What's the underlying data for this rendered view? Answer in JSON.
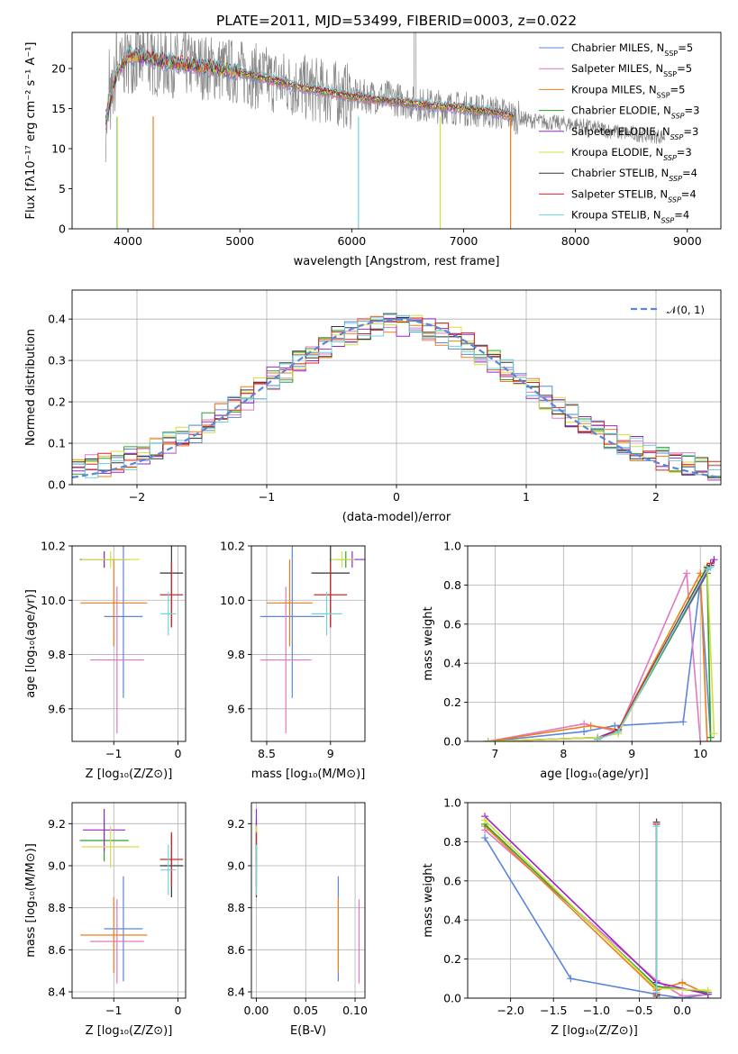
{
  "title": "PLATE=2011, MJD=53499, FIBERID=0003, z=0.022",
  "colors": {
    "Chabrier MILES": "#5b86d9",
    "Salpeter MILES": "#e377c2",
    "Kroupa MILES": "#ee7d1b",
    "Chabrier ELODIE": "#2ca02c",
    "Salpeter ELODIE": "#9925c9",
    "Kroupa ELODIE": "#d6df3e",
    "Chabrier STELIB": "#333333",
    "Salpeter STELIB": "#d62728",
    "Kroupa STELIB": "#6fd3dc"
  },
  "legend_spectrum": [
    {
      "name": "Chabrier MILES",
      "nssp": "5"
    },
    {
      "name": "Salpeter MILES",
      "nssp": "5"
    },
    {
      "name": "Kroupa MILES",
      "nssp": "5"
    },
    {
      "name": "Chabrier ELODIE",
      "nssp": "3"
    },
    {
      "name": "Salpeter ELODIE",
      "nssp": "3"
    },
    {
      "name": "Kroupa ELODIE",
      "nssp": "3"
    },
    {
      "name": "Chabrier STELIB",
      "nssp": "4"
    },
    {
      "name": "Salpeter STELIB",
      "nssp": "4"
    },
    {
      "name": "Kroupa STELIB",
      "nssp": "4"
    }
  ],
  "chart_data": [
    {
      "id": "spectrum",
      "type": "line",
      "xlabel": "wavelength [Angstrom, rest frame]",
      "ylabel": "Flux [fλ10⁻¹⁷ erg cm⁻² s⁻¹ A⁻¹]",
      "xlim": [
        3500,
        9300
      ],
      "ylim": [
        0,
        24.5
      ],
      "xticks": [
        4000,
        5000,
        6000,
        7000,
        8000,
        9000
      ],
      "yticks": [
        0,
        5,
        10,
        15,
        20
      ],
      "data_continuum": {
        "x": [
          3800,
          3900,
          4000,
          4100,
          4300,
          4500,
          4800,
          5000,
          5300,
          5600,
          6000,
          6300,
          6600,
          7000,
          7300,
          7600,
          8000,
          8400,
          8800
        ],
        "y": [
          12.5,
          19.5,
          21,
          21,
          20.5,
          20.5,
          20,
          19.5,
          18.5,
          17.5,
          16.5,
          16.5,
          15.5,
          15,
          14.5,
          13.5,
          13,
          12,
          11.5
        ]
      },
      "model_continuum": {
        "x": [
          3800,
          3900,
          4000,
          4100,
          4300,
          4500,
          4800,
          5000,
          5300,
          5600,
          6000,
          6300,
          6600,
          7000,
          7300,
          7450
        ],
        "y": [
          13.5,
          19.5,
          21.5,
          21.5,
          21,
          20.5,
          20,
          19.5,
          18.5,
          17.5,
          16.5,
          16,
          15.5,
          15,
          14.5,
          14
        ]
      },
      "cutoffs": [
        {
          "series": "Kroupa MILES",
          "x": 4225
        },
        {
          "series": "Kroupa STELIB",
          "x": 3900
        },
        {
          "series": "Kroupa ELODIE",
          "x": 3905
        },
        {
          "series": "Kroupa STELIB",
          "x": 6060
        },
        {
          "series": "Kroupa ELODIE",
          "x": 6790
        },
        {
          "series": "Kroupa MILES",
          "x": 7420
        }
      ]
    },
    {
      "id": "residuals",
      "type": "line",
      "xlabel": "(data-model)/error",
      "ylabel": "Normed distribution",
      "xlim": [
        -2.5,
        2.5
      ],
      "ylim": [
        0,
        0.47
      ],
      "xticks": [
        -2,
        -1,
        0,
        1,
        2
      ],
      "yticks": [
        0.0,
        0.1,
        0.2,
        0.3,
        0.4
      ],
      "gaussian_label": "𝒩(0, 1)"
    },
    {
      "id": "age-vs-z",
      "type": "scatter",
      "xlabel": "Z [log₁₀(Z/Z⊙)]",
      "ylabel": "age  [log₁₀(age/yr)]",
      "xlim": [
        -1.65,
        0.12
      ],
      "ylim": [
        9.48,
        10.2
      ],
      "xticks": [
        -1,
        0
      ],
      "yticks": [
        9.6,
        9.8,
        10.0,
        10.2
      ],
      "points": [
        {
          "series": "Chabrier MILES",
          "x": -0.85,
          "xerr": 0.3,
          "y": 9.94,
          "yerr": 0.3
        },
        {
          "series": "Salpeter MILES",
          "x": -0.95,
          "xerr": 0.42,
          "y": 9.78,
          "yerr": 0.27
        },
        {
          "series": "Kroupa MILES",
          "x": -1.0,
          "xerr": 0.52,
          "y": 9.99,
          "yerr": 0.16
        },
        {
          "series": "Chabrier ELODIE",
          "x": -1.15,
          "xerr": 0.38,
          "y": 10.15,
          "yerr": 0.03
        },
        {
          "series": "Salpeter ELODIE",
          "x": -1.15,
          "xerr": 0.33,
          "y": 10.15,
          "yerr": 0.03
        },
        {
          "series": "Kroupa ELODIE",
          "x": -1.05,
          "xerr": 0.45,
          "y": 10.15,
          "yerr": 0.03
        },
        {
          "series": "Chabrier STELIB",
          "x": -0.1,
          "xerr": 0.18,
          "y": 10.1,
          "yerr": 0.2
        },
        {
          "series": "Salpeter STELIB",
          "x": -0.1,
          "xerr": 0.18,
          "y": 10.02,
          "yerr": 0.12
        },
        {
          "series": "Kroupa STELIB",
          "x": -0.15,
          "xerr": 0.12,
          "y": 9.95,
          "yerr": 0.08
        }
      ]
    },
    {
      "id": "age-vs-mass",
      "type": "scatter",
      "xlabel": "mass [log₁₀(M/M⊙)]",
      "ylabel": "",
      "xlim": [
        8.38,
        9.27
      ],
      "ylim": [
        9.48,
        10.2
      ],
      "xticks": [
        8.5,
        9.0
      ],
      "yticks": [
        9.6,
        9.8,
        10.0,
        10.2
      ],
      "points": [
        {
          "series": "Chabrier MILES",
          "x": 8.7,
          "xerr": 0.25,
          "y": 9.94,
          "yerr": 0.3
        },
        {
          "series": "Salpeter MILES",
          "x": 8.65,
          "xerr": 0.2,
          "y": 9.78,
          "yerr": 0.27
        },
        {
          "series": "Kroupa MILES",
          "x": 8.68,
          "xerr": 0.18,
          "y": 9.99,
          "yerr": 0.16
        },
        {
          "series": "Chabrier ELODIE",
          "x": 9.12,
          "xerr": 0.1,
          "y": 10.15,
          "yerr": 0.03
        },
        {
          "series": "Salpeter ELODIE",
          "x": 9.17,
          "xerr": 0.1,
          "y": 10.15,
          "yerr": 0.03
        },
        {
          "series": "Kroupa ELODIE",
          "x": 9.09,
          "xerr": 0.1,
          "y": 10.15,
          "yerr": 0.03
        },
        {
          "series": "Chabrier STELIB",
          "x": 9.0,
          "xerr": 0.15,
          "y": 10.1,
          "yerr": 0.2
        },
        {
          "series": "Salpeter STELIB",
          "x": 9.0,
          "xerr": 0.13,
          "y": 10.02,
          "yerr": 0.12
        },
        {
          "series": "Kroupa STELIB",
          "x": 8.97,
          "xerr": 0.12,
          "y": 9.95,
          "yerr": 0.08
        }
      ]
    },
    {
      "id": "massweight-vs-age",
      "type": "line",
      "xlabel": "age  [log₁₀(age/yr)]",
      "ylabel": "mass weight",
      "xlim": [
        6.6,
        10.3
      ],
      "ylim": [
        0,
        1.0
      ],
      "xticks": [
        7,
        8,
        9,
        10
      ],
      "yticks": [
        0.0,
        0.2,
        0.4,
        0.6,
        0.8,
        1.0
      ],
      "series": [
        {
          "name": "Chabrier MILES",
          "x": [
            6.9,
            8.3,
            8.75,
            9.75,
            10.0,
            10.15
          ],
          "y": [
            0.0,
            0.05,
            0.08,
            0.1,
            0.82,
            0.02
          ]
        },
        {
          "name": "Salpeter MILES",
          "x": [
            6.9,
            8.3,
            8.8,
            9.8,
            10.0
          ],
          "y": [
            0.0,
            0.09,
            0.05,
            0.86,
            0.0
          ]
        },
        {
          "name": "Kroupa MILES",
          "x": [
            6.9,
            8.4,
            8.8,
            10.0,
            10.1
          ],
          "y": [
            0.0,
            0.08,
            0.06,
            0.86,
            0.0
          ]
        },
        {
          "name": "Chabrier ELODIE",
          "x": [
            6.9,
            8.5,
            8.8,
            10.1,
            10.15
          ],
          "y": [
            0.0,
            0.02,
            0.05,
            0.86,
            0.02
          ]
        },
        {
          "name": "Salpeter ELODIE",
          "x": [
            6.9,
            8.5,
            8.8,
            10.2
          ],
          "y": [
            0.0,
            0.02,
            0.06,
            0.93
          ]
        },
        {
          "name": "Kroupa ELODIE",
          "x": [
            6.9,
            8.5,
            8.8,
            10.1,
            10.2
          ],
          "y": [
            0.0,
            0.02,
            0.04,
            0.9,
            0.04
          ]
        },
        {
          "name": "Chabrier STELIB",
          "x": [
            8.5,
            8.8,
            10.1,
            10.15
          ],
          "y": [
            0.01,
            0.06,
            0.89,
            0.9
          ]
        },
        {
          "name": "Salpeter STELIB",
          "x": [
            8.5,
            8.8,
            10.1,
            10.15
          ],
          "y": [
            0.01,
            0.06,
            0.88,
            0.91
          ]
        },
        {
          "name": "Kroupa STELIB",
          "x": [
            8.5,
            8.8,
            10.1,
            10.15
          ],
          "y": [
            0.01,
            0.05,
            0.88,
            0.89
          ]
        }
      ]
    },
    {
      "id": "mass-vs-z",
      "type": "scatter",
      "xlabel": "Z [log₁₀(Z/Z⊙)]",
      "ylabel": "mass [log₁₀(M/M⊙)]",
      "xlim": [
        -1.65,
        0.12
      ],
      "ylim": [
        8.37,
        9.3
      ],
      "xticks": [
        -1,
        0
      ],
      "yticks": [
        8.4,
        8.6,
        8.8,
        9.0,
        9.2
      ],
      "points": [
        {
          "series": "Chabrier MILES",
          "x": -0.85,
          "xerr": 0.3,
          "y": 8.7,
          "yerr": 0.25
        },
        {
          "series": "Salpeter MILES",
          "x": -0.95,
          "xerr": 0.42,
          "y": 8.64,
          "yerr": 0.2
        },
        {
          "series": "Kroupa MILES",
          "x": -1.0,
          "xerr": 0.52,
          "y": 8.67,
          "yerr": 0.18
        },
        {
          "series": "Chabrier ELODIE",
          "x": -1.15,
          "xerr": 0.38,
          "y": 9.12,
          "yerr": 0.1
        },
        {
          "series": "Salpeter ELODIE",
          "x": -1.15,
          "xerr": 0.33,
          "y": 9.17,
          "yerr": 0.1
        },
        {
          "series": "Kroupa ELODIE",
          "x": -1.05,
          "xerr": 0.45,
          "y": 9.09,
          "yerr": 0.1
        },
        {
          "series": "Chabrier STELIB",
          "x": -0.1,
          "xerr": 0.18,
          "y": 9.0,
          "yerr": 0.15
        },
        {
          "series": "Salpeter STELIB",
          "x": -0.1,
          "xerr": 0.18,
          "y": 9.03,
          "yerr": 0.13
        },
        {
          "series": "Kroupa STELIB",
          "x": -0.15,
          "xerr": 0.12,
          "y": 8.98,
          "yerr": 0.12
        }
      ]
    },
    {
      "id": "mass-vs-ebv",
      "type": "scatter",
      "xlabel": "E(B-V)",
      "ylabel": "",
      "xlim": [
        -0.005,
        0.11
      ],
      "ylim": [
        8.37,
        9.3
      ],
      "xticks": [
        0.0,
        0.05,
        0.1
      ],
      "xticklabels": [
        "0.00",
        "0.05",
        "0.10"
      ],
      "yticks": [
        8.4,
        8.6,
        8.8,
        9.0,
        9.2
      ],
      "points": [
        {
          "series": "Chabrier MILES",
          "x": 0.083,
          "y": 8.7,
          "yerr": 0.25
        },
        {
          "series": "Salpeter MILES",
          "x": 0.104,
          "y": 8.64,
          "yerr": 0.2
        },
        {
          "series": "Kroupa MILES",
          "x": 0.083,
          "y": 8.67,
          "yerr": 0.18
        },
        {
          "series": "Chabrier ELODIE",
          "x": 0.0,
          "y": 9.12,
          "yerr": 0.1
        },
        {
          "series": "Salpeter ELODIE",
          "x": 0.0,
          "y": 9.17,
          "yerr": 0.1
        },
        {
          "series": "Kroupa ELODIE",
          "x": 0.0,
          "y": 9.09,
          "yerr": 0.1
        },
        {
          "series": "Chabrier STELIB",
          "x": 0.0,
          "y": 9.0,
          "yerr": 0.15
        },
        {
          "series": "Salpeter STELIB",
          "x": 0.0,
          "y": 9.03,
          "yerr": 0.13
        },
        {
          "series": "Kroupa STELIB",
          "x": 0.0,
          "y": 8.98,
          "yerr": 0.12
        }
      ]
    },
    {
      "id": "massweight-vs-z",
      "type": "line",
      "xlabel": "Z [log₁₀(Z/Z⊙)]",
      "ylabel": "mass weight",
      "xlim": [
        -2.5,
        0.45
      ],
      "ylim": [
        0,
        1.0
      ],
      "xticks": [
        -2.0,
        -1.5,
        -1.0,
        -0.5,
        0.0
      ],
      "xticklabels": [
        "−2.0",
        "−1.5",
        "−1.0",
        "−0.5",
        "0.0"
      ],
      "yticks": [
        0.0,
        0.2,
        0.4,
        0.6,
        0.8,
        1.0
      ],
      "series": [
        {
          "name": "Chabrier MILES",
          "x": [
            -2.3,
            -1.3,
            -0.3,
            0.0,
            0.3
          ],
          "y": [
            0.82,
            0.1,
            0.02,
            0.0,
            0.02
          ]
        },
        {
          "name": "Salpeter MILES",
          "x": [
            -2.3,
            -0.3,
            0.0,
            0.3
          ],
          "y": [
            0.86,
            0.09,
            0.01,
            0.02
          ]
        },
        {
          "name": "Kroupa MILES",
          "x": [
            -2.3,
            -0.3,
            0.0,
            0.3
          ],
          "y": [
            0.88,
            0.04,
            0.08,
            0.02
          ]
        },
        {
          "name": "Chabrier ELODIE",
          "x": [
            -2.3,
            -0.3,
            0.3
          ],
          "y": [
            0.89,
            0.06,
            0.03
          ]
        },
        {
          "name": "Salpeter ELODIE",
          "x": [
            -2.3,
            -0.3,
            0.3
          ],
          "y": [
            0.93,
            0.08,
            0.02
          ]
        },
        {
          "name": "Kroupa ELODIE",
          "x": [
            -2.3,
            -0.3,
            0.3
          ],
          "y": [
            0.91,
            0.05,
            0.04
          ]
        },
        {
          "name": "Chabrier STELIB",
          "x": [
            -0.3,
            -0.3
          ],
          "y": [
            0.9,
            0.01
          ]
        },
        {
          "name": "Salpeter STELIB",
          "x": [
            -0.3,
            -0.3
          ],
          "y": [
            0.89,
            0.02
          ]
        },
        {
          "name": "Kroupa STELIB",
          "x": [
            -0.3,
            -0.3
          ],
          "y": [
            0.88,
            0.03
          ]
        }
      ]
    }
  ]
}
